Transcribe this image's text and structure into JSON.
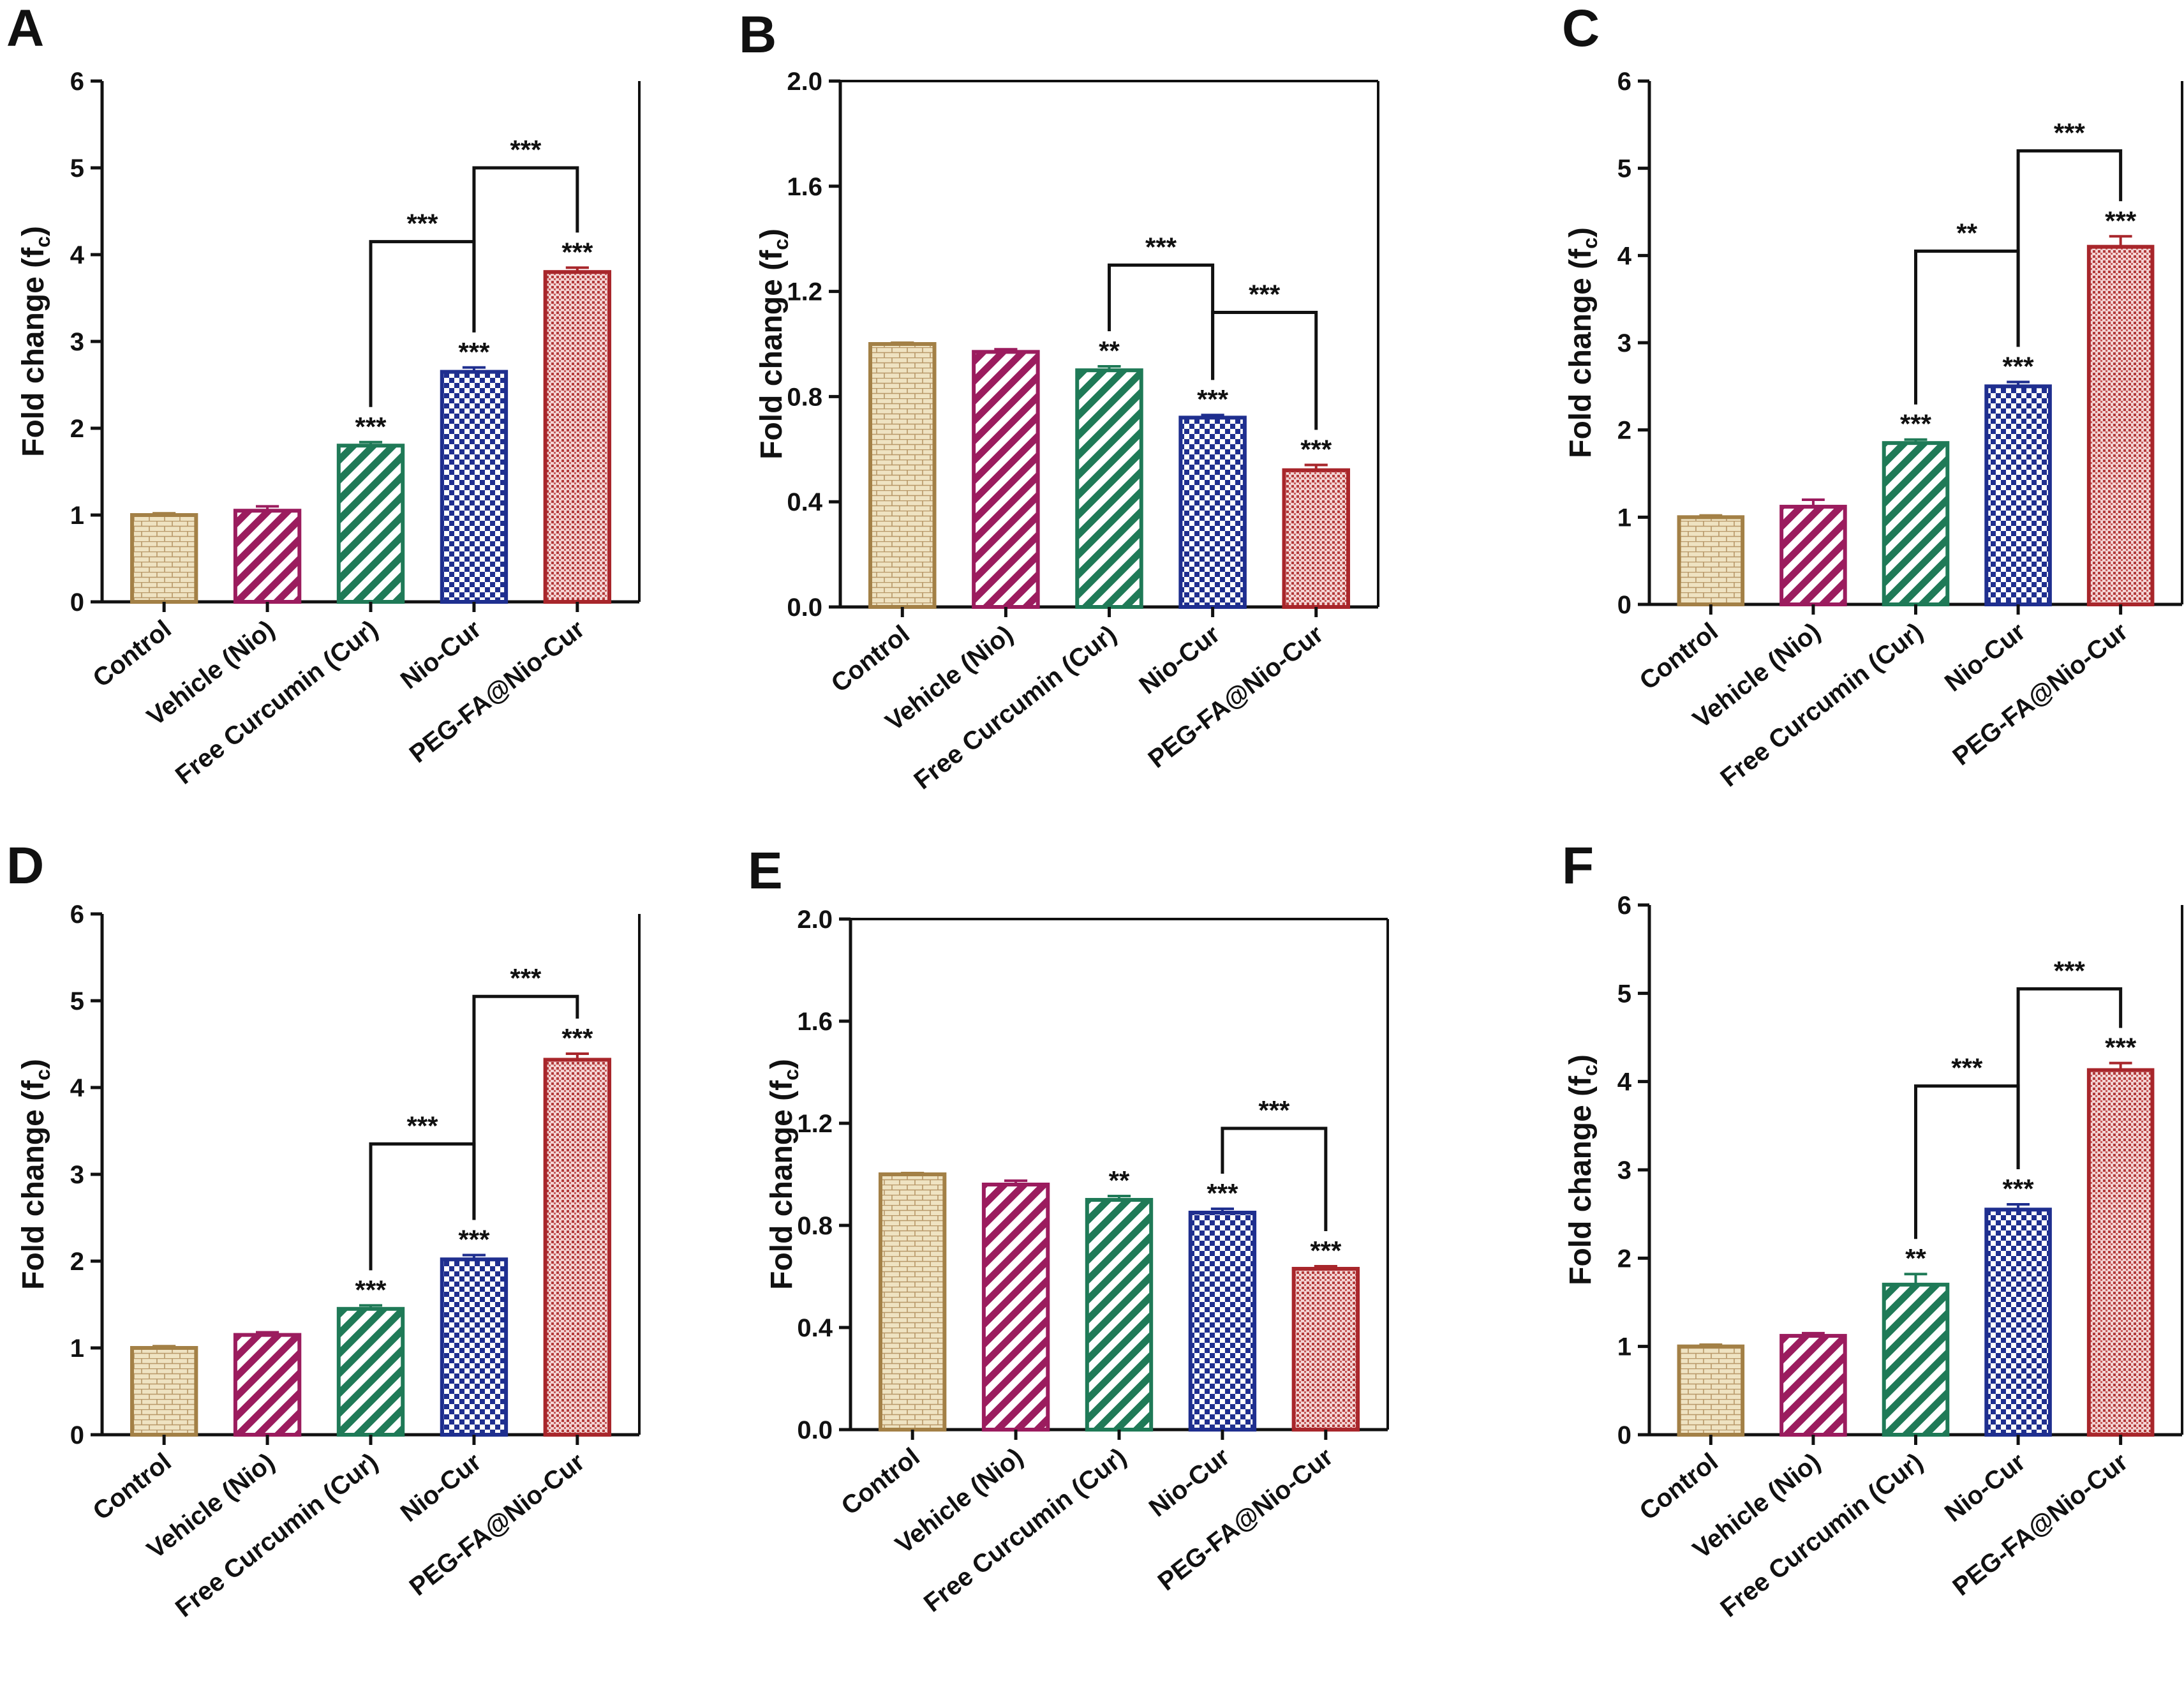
{
  "figure": {
    "colors": {
      "axis": "#111111",
      "Control": "#a38046",
      "ControlFill": "#efe3c2",
      "Vehicle (Nio)": "#9b1c5e",
      "Free Curcumin (Cur)": "#1f7a57",
      "Nio-Cur": "#1f2f8f",
      "PEG-FA@Nio-Cur": "#a8262b"
    },
    "patterns": [
      "brick",
      "diag",
      "diag-green",
      "checker",
      "dots"
    ]
  },
  "chart_data": [
    {
      "panel": "A",
      "type": "bar",
      "ylabel": "Fold change (fc)",
      "ylim": [
        0,
        6
      ],
      "yticks": [
        "0",
        "1",
        "2",
        "3",
        "4",
        "5",
        "6"
      ],
      "categories": [
        "Control",
        "Vehicle (Nio)",
        "Free Curcumin (Cur)",
        "Nio-Cur",
        "PEG-FA@Nio-Cur"
      ],
      "values": [
        1.0,
        1.05,
        1.8,
        2.65,
        3.8
      ],
      "errors": [
        0.02,
        0.05,
        0.04,
        0.05,
        0.05
      ],
      "marks": [
        "",
        "",
        "***",
        "***",
        "***"
      ],
      "brackets": [
        {
          "from": 2,
          "to": 3,
          "y": 4.15,
          "label": "***"
        },
        {
          "from": 3,
          "to": 4,
          "y": 5.0,
          "label": "***"
        }
      ]
    },
    {
      "panel": "B",
      "type": "bar",
      "ylabel": "Fold change (fc)",
      "ylim": [
        0,
        2.0
      ],
      "yticks": [
        "0.0",
        "0.4",
        "0.8",
        "1.2",
        "1.6",
        "2.0"
      ],
      "categories": [
        "Control",
        "Vehicle (Nio)",
        "Free Curcumin (Cur)",
        "Nio-Cur",
        "PEG-FA@Nio-Cur"
      ],
      "values": [
        1.0,
        0.97,
        0.9,
        0.72,
        0.52
      ],
      "errors": [
        0.005,
        0.01,
        0.015,
        0.01,
        0.02
      ],
      "marks": [
        "",
        "",
        "**",
        "***",
        "***"
      ],
      "brackets": [
        {
          "from": 2,
          "to": 3,
          "y": 1.3,
          "label": "***"
        },
        {
          "from": 3,
          "to": 4,
          "y": 1.12,
          "label": "***"
        }
      ]
    },
    {
      "panel": "C",
      "type": "bar",
      "ylabel": "Fold change (fc)",
      "ylim": [
        0,
        6
      ],
      "yticks": [
        "0",
        "1",
        "2",
        "3",
        "4",
        "5",
        "6"
      ],
      "categories": [
        "Control",
        "Vehicle (Nio)",
        "Free Curcumin (Cur)",
        "Nio-Cur",
        "PEG-FA@Nio-Cur"
      ],
      "values": [
        1.0,
        1.12,
        1.85,
        2.5,
        4.1
      ],
      "errors": [
        0.02,
        0.08,
        0.04,
        0.05,
        0.12
      ],
      "marks": [
        "",
        "",
        "***",
        "***",
        "***"
      ],
      "brackets": [
        {
          "from": 2,
          "to": 3,
          "y": 4.05,
          "label": "**"
        },
        {
          "from": 3,
          "to": 4,
          "y": 5.2,
          "label": "***"
        }
      ]
    },
    {
      "panel": "D",
      "type": "bar",
      "ylabel": "Fold change (fc)",
      "ylim": [
        0,
        6
      ],
      "yticks": [
        "0",
        "1",
        "2",
        "3",
        "4",
        "5",
        "6"
      ],
      "categories": [
        "Control",
        "Vehicle (Nio)",
        "Free Curcumin (Cur)",
        "Nio-Cur",
        "PEG-FA@Nio-Cur"
      ],
      "values": [
        1.0,
        1.15,
        1.45,
        2.02,
        4.32
      ],
      "errors": [
        0.02,
        0.03,
        0.04,
        0.05,
        0.07
      ],
      "marks": [
        "",
        "",
        "***",
        "***",
        "***"
      ],
      "brackets": [
        {
          "from": 2,
          "to": 3,
          "y": 3.35,
          "label": "***"
        },
        {
          "from": 3,
          "to": 4,
          "y": 5.05,
          "label": "***"
        }
      ]
    },
    {
      "panel": "E",
      "type": "bar",
      "ylabel": "Fold change (fc)",
      "ylim": [
        0,
        2.0
      ],
      "yticks": [
        "0.0",
        "0.4",
        "0.8",
        "1.2",
        "1.6",
        "2.0"
      ],
      "categories": [
        "Control",
        "Vehicle (Nio)",
        "Free Curcumin (Cur)",
        "Nio-Cur",
        "PEG-FA@Nio-Cur"
      ],
      "values": [
        1.0,
        0.96,
        0.9,
        0.85,
        0.63
      ],
      "errors": [
        0.005,
        0.015,
        0.015,
        0.015,
        0.01
      ],
      "marks": [
        "",
        "",
        "**",
        "***",
        "***"
      ],
      "brackets": [
        {
          "from": 3,
          "to": 4,
          "y": 1.18,
          "label": "***"
        }
      ]
    },
    {
      "panel": "F",
      "type": "bar",
      "ylabel": "Fold change (fc)",
      "ylim": [
        0,
        6
      ],
      "yticks": [
        "0",
        "1",
        "2",
        "3",
        "4",
        "5",
        "6"
      ],
      "categories": [
        "Control",
        "Vehicle (Nio)",
        "Free Curcumin (Cur)",
        "Nio-Cur",
        "PEG-FA@Nio-Cur"
      ],
      "values": [
        1.0,
        1.12,
        1.7,
        2.55,
        4.13
      ],
      "errors": [
        0.02,
        0.03,
        0.12,
        0.06,
        0.08
      ],
      "marks": [
        "",
        "",
        "**",
        "***",
        "***"
      ],
      "brackets": [
        {
          "from": 2,
          "to": 3,
          "y": 3.95,
          "label": "***"
        },
        {
          "from": 3,
          "to": 4,
          "y": 5.05,
          "label": "***"
        }
      ]
    }
  ]
}
